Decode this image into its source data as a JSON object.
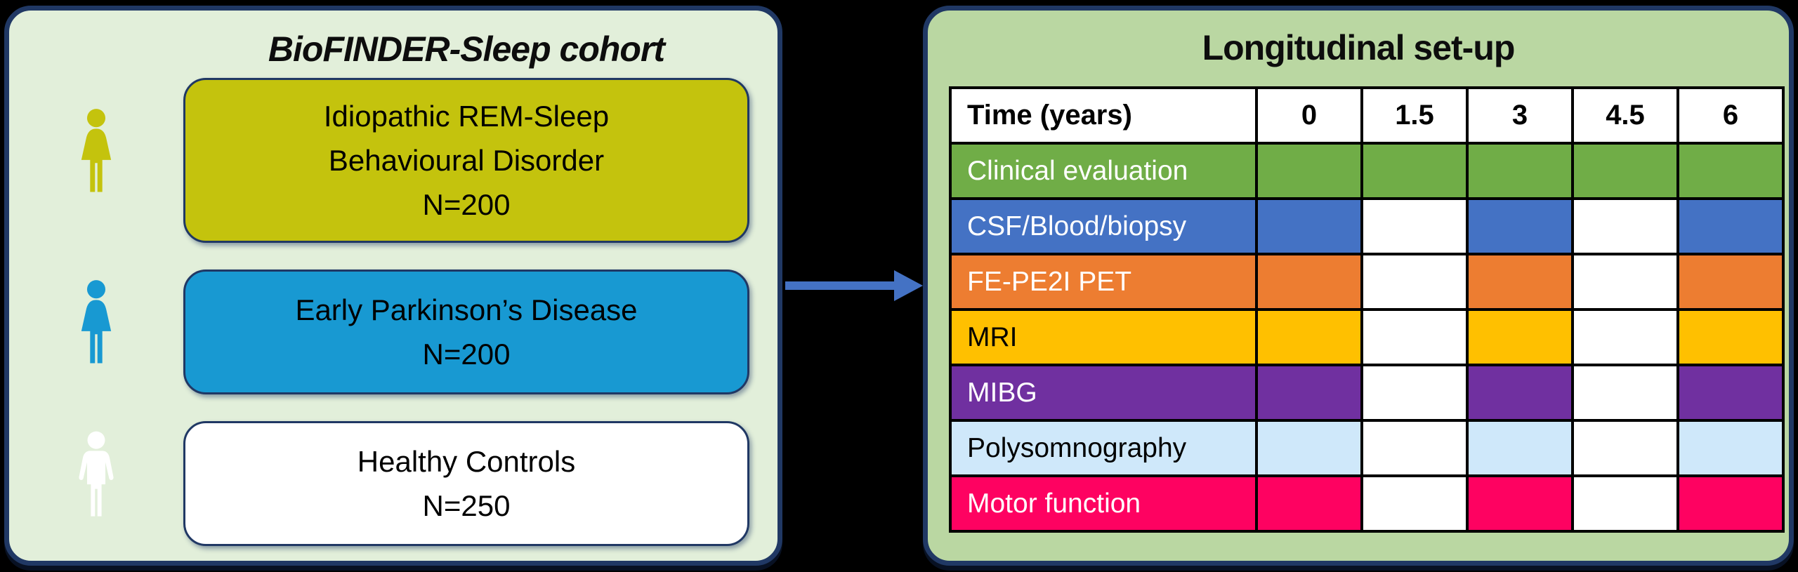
{
  "left_panel": {
    "title": "BioFINDER-Sleep cohort",
    "groups": [
      {
        "icon": "woman",
        "icon_color": "#c4c30d",
        "box_color": "#c4c30d",
        "text_color": "#000000",
        "label_lines": [
          "Idiopathic REM-Sleep",
          "Behavioural Disorder",
          "N=200"
        ]
      },
      {
        "icon": "woman",
        "icon_color": "#1899d2",
        "box_color": "#1899d2",
        "text_color": "#000000",
        "label_lines": [
          "Early Parkinson’s Disease",
          "N=200"
        ]
      },
      {
        "icon": "man",
        "icon_color": "#ffffff",
        "box_color": "#ffffff",
        "text_color": "#000000",
        "label_lines": [
          "Healthy Controls",
          "N=250"
        ]
      }
    ]
  },
  "arrow": {
    "color": "#4472c4"
  },
  "right_panel": {
    "title": "Longitudinal set-up",
    "table": {
      "time_label": "Time (years)",
      "time_points": [
        "0",
        "1.5",
        "3",
        "4.5",
        "6"
      ],
      "empty_cell_color": "#ffffff",
      "rows": [
        {
          "label": "Clinical evaluation",
          "color": "#70ad47",
          "text_color": "#ffffff",
          "filled": [
            true,
            true,
            true,
            true,
            true
          ]
        },
        {
          "label": "CSF/Blood/biopsy",
          "color": "#4472c4",
          "text_color": "#ffffff",
          "filled": [
            true,
            false,
            true,
            false,
            true
          ]
        },
        {
          "label": "FE-PE2I PET",
          "color": "#ed7d31",
          "text_color": "#ffffff",
          "filled": [
            true,
            false,
            true,
            false,
            true
          ]
        },
        {
          "label": "MRI",
          "color": "#ffc000",
          "text_color": "#000000",
          "filled": [
            true,
            false,
            true,
            false,
            true
          ]
        },
        {
          "label": "MIBG",
          "color": "#7030a0",
          "text_color": "#ffffff",
          "filled": [
            true,
            false,
            true,
            false,
            true
          ]
        },
        {
          "label": "Polysomnography",
          "color": "#cfe8fa",
          "text_color": "#000000",
          "filled": [
            true,
            false,
            true,
            false,
            true
          ]
        },
        {
          "label": "Motor function",
          "color": "#fe0261",
          "text_color": "#ffffff",
          "filled": [
            true,
            false,
            true,
            false,
            true
          ]
        }
      ]
    }
  },
  "colors": {
    "background": "#000000",
    "left_panel_bg": "#e2efda",
    "right_panel_bg": "#bad7a2",
    "panel_border": "#203864",
    "table_border": "#000000"
  }
}
